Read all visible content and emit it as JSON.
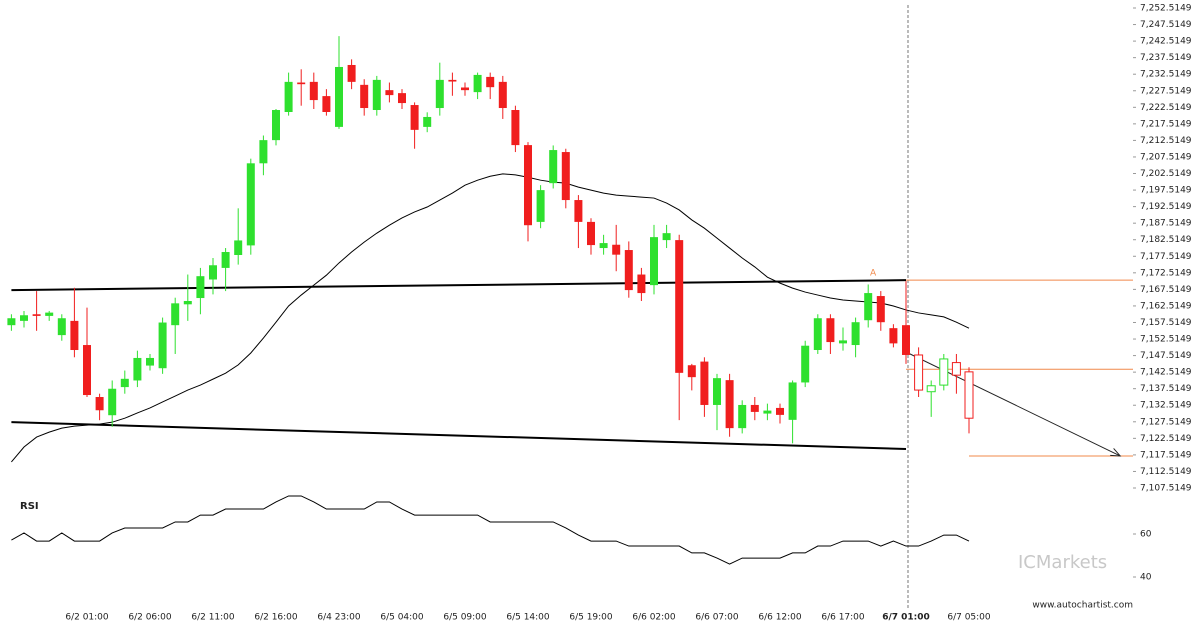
{
  "chart_data": {
    "type": "candlestick",
    "categories": [
      null,
      null,
      null,
      null,
      null,
      null,
      "6/2 01:00",
      null,
      null,
      null,
      null,
      "6/2 06:00",
      null,
      null,
      null,
      null,
      "6/2 11:00",
      null,
      null,
      null,
      null,
      "6/2 16:00",
      null,
      null,
      null,
      null,
      "6/4 23:00",
      null,
      null,
      null,
      null,
      "6/5 04:00",
      null,
      null,
      null,
      null,
      "6/5 09:00",
      null,
      null,
      null,
      null,
      "6/5 14:00",
      null,
      null,
      null,
      null,
      "6/5 19:00",
      null,
      null,
      null,
      null,
      "6/6 02:00",
      null,
      null,
      null,
      null,
      "6/6 07:00",
      null,
      null,
      null,
      null,
      "6/6 12:00",
      null,
      null,
      null,
      null,
      "6/6 17:00",
      null,
      null,
      null,
      null,
      "6/7 01:00",
      null,
      null,
      null,
      null,
      "6/7 05:00"
    ],
    "open": [
      7156.7,
      7158,
      7160,
      7159.5,
      7153.7,
      7158,
      7150.7,
      7135,
      7129.5,
      7138,
      7140,
      7144.5,
      7143.7,
      7156.7,
      7163,
      7164.9,
      7170.5,
      7174,
      7177.9,
      7180.8,
      7205.6,
      7212.6,
      7221.1,
      7230,
      7230.2,
      7225.9,
      7216.6,
      7235.3,
      7229.3,
      7221.7,
      7227.7,
      7226.8,
      7223.2,
      7216.6,
      7222.3,
      7230.8,
      7228.5,
      7227.1,
      7231.7,
      7230.2,
      7221.7,
      7211.1,
      7187.9,
      7199.6,
      7209,
      7194.5,
      7187.9,
      7180,
      7181,
      7179.4,
      7172,
      7168.8,
      7182.4,
      7182.4,
      7144.6,
      7145.7,
      7132.6,
      7140.1,
      7125.6,
      7132.6,
      7130,
      7131.7,
      7128.1,
      7139.4,
      7149.2,
      7158.8,
      7151.2,
      7150.7,
      7158.2,
      7165.5,
      7155.8,
      7156.7,
      7147.7,
      7136.6,
      7138.6,
      7145.4,
      7142.6
    ],
    "high": [
      7160,
      7161,
      7167,
      7161,
      7160,
      7168,
      7162,
      7136,
      7140,
      7143,
      7149,
      7148,
      7159,
      7165,
      7172,
      7174,
      7177,
      7180,
      7192,
      7207,
      7214,
      7222,
      7233,
      7234,
      7233,
      7228,
      7244,
      7237,
      7231,
      7232,
      7230,
      7228,
      7224,
      7221,
      7236,
      7233,
      7230,
      7233,
      7233,
      7232,
      7223,
      7212,
      7199,
      7211,
      7210,
      7196,
      7189,
      7184,
      7187,
      7182,
      7174,
      7187,
      7187,
      7184,
      7145,
      7147,
      7142,
      7142,
      7134,
      7135,
      7133,
      7133,
      7140,
      7152,
      7160,
      7160,
      7156,
      7159,
      7169,
      7167,
      7157,
      7170,
      7150,
      7140,
      7148,
      7148,
      7144
    ],
    "low": [
      7155,
      7156,
      7155,
      7158,
      7152,
      7147,
      7135,
      7128,
      7126,
      7136,
      7138,
      7143,
      7142,
      7148,
      7158,
      7160,
      7166,
      7167,
      7175,
      7178,
      7202,
      7211,
      7220,
      7223,
      7222,
      7220,
      7216,
      7228,
      7220,
      7220,
      7224,
      7222,
      7210,
      7215,
      7220,
      7226,
      7226,
      7225,
      7225,
      7219,
      7209,
      7182,
      7186,
      7198,
      7192,
      7180,
      7178,
      7178,
      7173,
      7165,
      7164,
      7166,
      7180,
      7128,
      7137,
      7129,
      7125,
      7123,
      7124,
      7128,
      7128,
      7127,
      7121,
      7138,
      7148,
      7148,
      7149,
      7147,
      7156,
      7155,
      7150,
      7145,
      7135,
      7129,
      7137,
      7136,
      7124
    ],
    "close": [
      7158.8,
      7159.7,
      7159.5,
      7160.5,
      7158.8,
      7149.2,
      7135.6,
      7131,
      7137.5,
      7140.5,
      7146.8,
      7146.8,
      7157.5,
      7163.3,
      7164,
      7171.5,
      7174.8,
      7178.8,
      7182.3,
      7205.6,
      7212.6,
      7221.7,
      7230.2,
      7229.5,
      7224.7,
      7221.1,
      7234.7,
      7230.2,
      7222.3,
      7230.8,
      7226.2,
      7223.8,
      7215.7,
      7219.6,
      7230.8,
      7230.3,
      7227.7,
      7232.3,
      7228.6,
      7222.3,
      7211.1,
      7186.9,
      7197.5,
      7209.6,
      7194.5,
      7187.9,
      7180.9,
      7181.5,
      7178,
      7167.3,
      7166.4,
      7183.3,
      7184.5,
      7142.3,
      7141,
      7132.6,
      7140.7,
      7125.6,
      7132.6,
      7130.5,
      7130.9,
      7129.6,
      7139.4,
      7150.5,
      7158.8,
      7151.6,
      7152.1,
      7157.6,
      7166.4,
      7157.6,
      7151.2,
      7147.7,
      7137.1,
      7138.4,
      7146.5,
      7141.6,
      7128.6
    ],
    "up_color": "#2ee02e",
    "down_color": "#f01e1e",
    "marker_index": 71,
    "moving_average": {
      "color": "#000000",
      "values": [
        7115.4,
        7119.9,
        7122.9,
        7124.4,
        7125.6,
        7126.2,
        7126.5,
        7126.8,
        7127.4,
        7128.6,
        7130.2,
        7131.7,
        7133.5,
        7135.3,
        7137.1,
        7138.6,
        7140.4,
        7142.2,
        7144.7,
        7148.3,
        7152.8,
        7157.6,
        7162.5,
        7165.8,
        7168.8,
        7171.8,
        7175.5,
        7178.8,
        7181.8,
        7184.5,
        7186.9,
        7189.1,
        7190.9,
        7192.4,
        7194.5,
        7196.6,
        7199,
        7200.5,
        7201.7,
        7202.4,
        7202.1,
        7201.4,
        7200.5,
        7199.9,
        7199.6,
        7198.4,
        7197.5,
        7196.6,
        7196,
        7195.7,
        7195.4,
        7195.1,
        7193.6,
        7191.5,
        7188.5,
        7186,
        7183,
        7180,
        7177,
        7174.3,
        7171.2,
        7169.4,
        7167.9,
        7166.7,
        7165.8,
        7164.9,
        7164.3,
        7164,
        7163.7,
        7163.4,
        7162.5,
        7161.3,
        7160.4,
        7159.8,
        7159.2,
        7157.6,
        7155.8
      ]
    },
    "pattern": {
      "color": "#000000",
      "level_color": "#f0884a",
      "label": "A",
      "upper_line": {
        "x": [
          0,
          71
        ],
        "y": [
          7167.3,
          7170.3
        ]
      },
      "lower_line": {
        "x": [
          0,
          71
        ],
        "y": [
          7127.4,
          7119.3
        ]
      },
      "levels": [
        {
          "value": 7170.3,
          "from": 71
        },
        {
          "value": 7143.4,
          "from": 71
        },
        {
          "value": 7117.2,
          "from": 76
        }
      ],
      "arrow": {
        "x": [
          71,
          88
        ],
        "y": [
          7148.6,
          7117.2
        ]
      }
    },
    "ylim": [
      7107.5149,
      7252.5149
    ],
    "yticks": [
      {
        "value": 7107.5149,
        "label": "7,107.5149"
      },
      {
        "value": 7112.5149,
        "label": "7,112.5149"
      },
      {
        "value": 7117.5149,
        "label": "7,117.5149"
      },
      {
        "value": 7122.5149,
        "label": "7,122.5149"
      },
      {
        "value": 7127.5149,
        "label": "7,127.5149"
      },
      {
        "value": 7132.5149,
        "label": "7,132.5149"
      },
      {
        "value": 7137.5149,
        "label": "7,137.5149"
      },
      {
        "value": 7142.5149,
        "label": "7,142.5149"
      },
      {
        "value": 7147.5149,
        "label": "7,147.5149"
      },
      {
        "value": 7152.5149,
        "label": "7,152.5149"
      },
      {
        "value": 7157.5149,
        "label": "7,157.5149"
      },
      {
        "value": 7162.5149,
        "label": "7,162.5149"
      },
      {
        "value": 7167.5149,
        "label": "7,167.5149"
      },
      {
        "value": 7172.5149,
        "label": "7,172.5149"
      },
      {
        "value": 7177.5149,
        "label": "7,177.5149"
      },
      {
        "value": 7182.5149,
        "label": "7,182.5149"
      },
      {
        "value": 7187.5149,
        "label": "7,187.5149"
      },
      {
        "value": 7192.5149,
        "label": "7,192.5149"
      },
      {
        "value": 7197.5149,
        "label": "7,197.5149"
      },
      {
        "value": 7202.5149,
        "label": "7,202.5149"
      },
      {
        "value": 7207.5149,
        "label": "7,207.5149"
      },
      {
        "value": 7212.5149,
        "label": "7,212.5149"
      },
      {
        "value": 7217.5149,
        "label": "7,217.5149"
      },
      {
        "value": 7222.5149,
        "label": "7,222.5149"
      },
      {
        "value": 7227.5149,
        "label": "7,227.5149"
      },
      {
        "value": 7232.5149,
        "label": "7,232.5149"
      },
      {
        "value": 7237.5149,
        "label": "7,237.5149"
      },
      {
        "value": 7242.5149,
        "label": "7,242.5149"
      },
      {
        "value": 7247.5149,
        "label": "7,247.5149"
      },
      {
        "value": 7252.5149,
        "label": "7,252.5149"
      }
    ],
    "rsi": {
      "title": "RSI",
      "color": "#000000",
      "ylim": [
        30,
        80
      ],
      "yticks": [
        60,
        40
      ],
      "values": [
        57.2,
        60.5,
        56.7,
        56.7,
        60.5,
        56.7,
        56.7,
        56.7,
        60.5,
        62.8,
        62.8,
        62.8,
        62.8,
        65.6,
        65.6,
        68.8,
        68.8,
        71.6,
        71.6,
        71.6,
        71.6,
        74.9,
        77.7,
        77.7,
        74.9,
        71.6,
        71.6,
        71.6,
        71.6,
        74.9,
        74.9,
        71.6,
        68.8,
        68.8,
        68.8,
        68.8,
        68.8,
        68.8,
        65.6,
        65.6,
        65.6,
        65.6,
        65.6,
        65.6,
        62.8,
        59.5,
        56.7,
        56.7,
        56.7,
        54.4,
        54.4,
        54.4,
        54.4,
        54.4,
        51.2,
        51.2,
        48.8,
        46,
        48.8,
        48.8,
        48.8,
        48.8,
        51.2,
        51.2,
        54.4,
        54.4,
        56.7,
        56.7,
        56.7,
        54.4,
        56.7,
        54.4,
        54.4,
        56.7,
        59.5,
        59.5,
        56.7
      ]
    },
    "watermark": "ICMarkets",
    "source": "www.autochartist.com"
  }
}
